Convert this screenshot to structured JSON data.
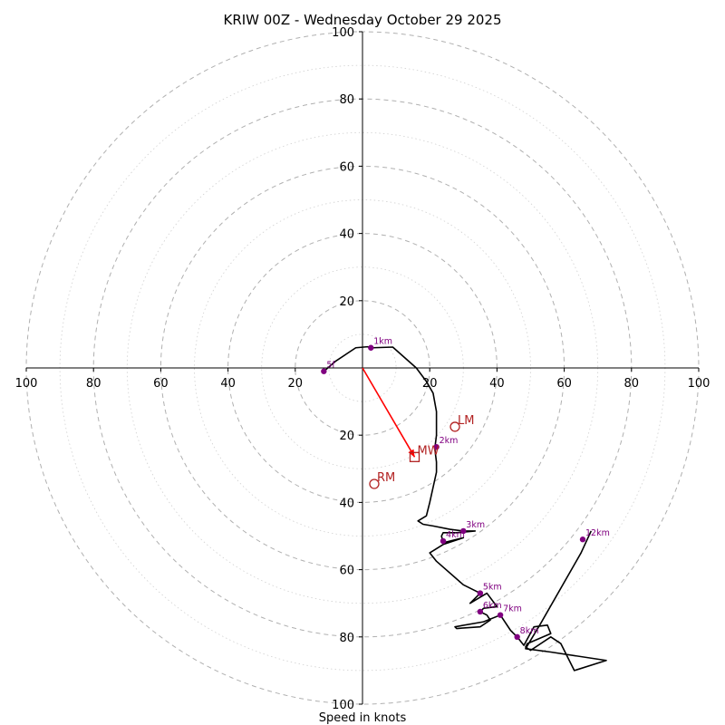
{
  "chart_data": {
    "type": "hodograph",
    "title": "KRIW 00Z - Wednesday October 29 2025",
    "xlabel": "Speed in knots",
    "units": "knots",
    "range": [
      -100,
      100
    ],
    "ring_step_major": 20,
    "ring_step_minor": 10,
    "x_ticks": [
      {
        "value": -100,
        "label": "100"
      },
      {
        "value": -80,
        "label": "80"
      },
      {
        "value": -60,
        "label": "60"
      },
      {
        "value": -40,
        "label": "40"
      },
      {
        "value": -20,
        "label": "20"
      },
      {
        "value": 20,
        "label": "20"
      },
      {
        "value": 40,
        "label": "40"
      },
      {
        "value": 60,
        "label": "60"
      },
      {
        "value": 80,
        "label": "80"
      },
      {
        "value": 100,
        "label": "100"
      }
    ],
    "y_ticks": [
      {
        "value": 100,
        "label": "100"
      },
      {
        "value": 80,
        "label": "80"
      },
      {
        "value": 60,
        "label": "60"
      },
      {
        "value": 40,
        "label": "40"
      },
      {
        "value": 20,
        "label": "20"
      },
      {
        "value": -20,
        "label": "20"
      },
      {
        "value": -40,
        "label": "40"
      },
      {
        "value": -60,
        "label": "60"
      },
      {
        "value": -80,
        "label": "80"
      },
      {
        "value": -100,
        "label": "100"
      }
    ],
    "trace": [
      [
        -11.5,
        -1.0
      ],
      [
        -8.0,
        2.0
      ],
      [
        -2.0,
        6.0
      ],
      [
        1.5,
        6.3
      ],
      [
        3.0,
        6.0
      ],
      [
        9.0,
        6.2
      ],
      [
        16.0,
        0.0
      ],
      [
        19.0,
        -4.0
      ],
      [
        21.0,
        -7.5
      ],
      [
        22.0,
        -13.0
      ],
      [
        22.0,
        -20.0
      ],
      [
        21.5,
        -24.0
      ],
      [
        22.0,
        -28.0
      ],
      [
        22.0,
        -31.0
      ],
      [
        20.0,
        -40.0
      ],
      [
        19.0,
        -44.0
      ],
      [
        16.5,
        -45.5
      ],
      [
        18.0,
        -46.5
      ],
      [
        21.0,
        -47.0
      ],
      [
        26.0,
        -48.0
      ],
      [
        30.0,
        -48.5
      ],
      [
        33.5,
        -48.5
      ],
      [
        28.0,
        -49.0
      ],
      [
        24.0,
        -49.0
      ],
      [
        23.5,
        -50.0
      ],
      [
        24.0,
        -52.0
      ],
      [
        30.0,
        -50.5
      ],
      [
        24.0,
        -52.5
      ],
      [
        20.0,
        -55.0
      ],
      [
        22.0,
        -57.5
      ],
      [
        30.0,
        -64.5
      ],
      [
        35.0,
        -67.0
      ],
      [
        32.0,
        -70.0
      ],
      [
        37.0,
        -67.0
      ],
      [
        40.0,
        -71.0
      ],
      [
        36.0,
        -71.5
      ],
      [
        35.0,
        -72.5
      ],
      [
        37.0,
        -73.5
      ],
      [
        38.0,
        -75.0
      ],
      [
        35.0,
        -77.0
      ],
      [
        28.0,
        -77.5
      ],
      [
        27.5,
        -77.0
      ],
      [
        36.0,
        -75.5
      ],
      [
        41.0,
        -73.5
      ],
      [
        44.0,
        -78.0
      ],
      [
        46.0,
        -80.0
      ],
      [
        48.0,
        -82.5
      ],
      [
        51.0,
        -77.0
      ],
      [
        55.0,
        -76.5
      ],
      [
        56.0,
        -79.0
      ],
      [
        49.0,
        -82.0
      ],
      [
        48.5,
        -83.0
      ],
      [
        50.0,
        -84.0
      ],
      [
        56.0,
        -80.0
      ],
      [
        59.0,
        -82.0
      ],
      [
        63.0,
        -90.0
      ],
      [
        72.5,
        -87.0
      ],
      [
        56.0,
        -84.5
      ],
      [
        48.5,
        -83.5
      ],
      [
        53.0,
        -76.0
      ],
      [
        61.0,
        -62.0
      ],
      [
        65.0,
        -55.0
      ],
      [
        68.0,
        -48.5
      ]
    ],
    "height_markers": [
      {
        "label": "5f",
        "x": -11.5,
        "y": -1.0
      },
      {
        "label": "1km",
        "x": 2.5,
        "y": 6.0
      },
      {
        "label": "2km",
        "x": 22.0,
        "y": -23.5
      },
      {
        "label": "3km",
        "x": 30.0,
        "y": -48.5
      },
      {
        "label": "4km",
        "x": 24.0,
        "y": -51.5
      },
      {
        "label": "5km",
        "x": 35.0,
        "y": -67.0
      },
      {
        "label": "6km",
        "x": 35.0,
        "y": -72.5
      },
      {
        "label": "7km",
        "x": 41.0,
        "y": -73.5
      },
      {
        "label": "8km",
        "x": 46.0,
        "y": -80.0
      },
      {
        "label": "12km",
        "x": 65.5,
        "y": -51.0
      }
    ],
    "storm_motion": {
      "mean_wind": {
        "label": "MW",
        "x": 15.5,
        "y": -26.5
      },
      "left_mover": {
        "label": "LM",
        "x": 27.5,
        "y": -17.5
      },
      "right_mover": {
        "label": "RM",
        "x": 3.5,
        "y": -34.5
      }
    },
    "colors": {
      "trace": "#000000",
      "markers": "#800080",
      "storm": "#b22222",
      "shear_vector": "#ff0000",
      "rings": "#b0b0b0"
    }
  }
}
